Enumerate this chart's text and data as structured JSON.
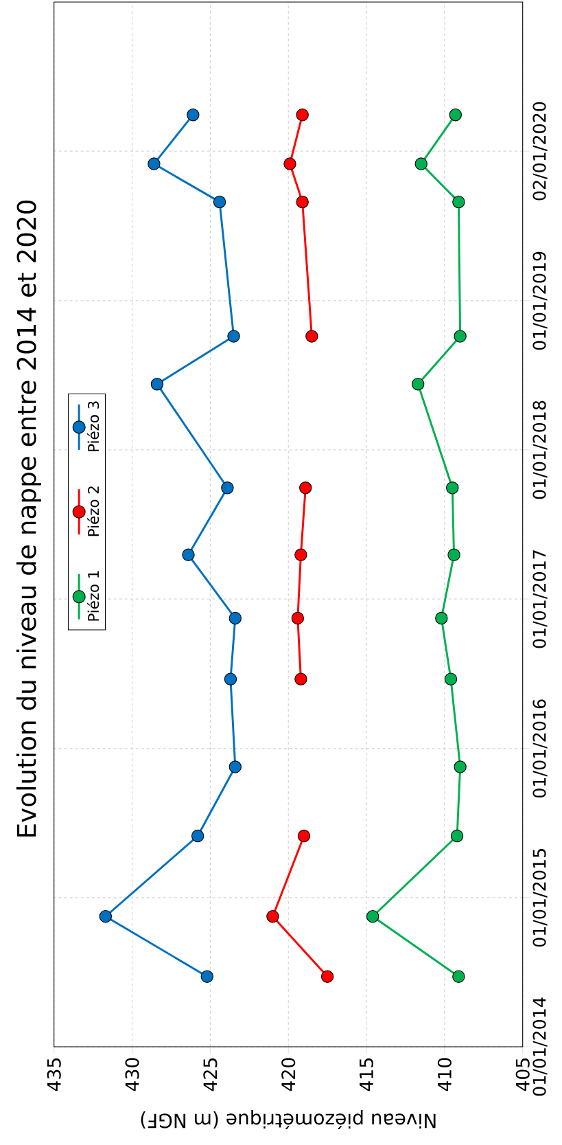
{
  "chart_data": {
    "type": "line",
    "orientation": "horizontal",
    "title": "Evolution du niveau de nappe entre 2014 et 2020",
    "xlabel": "Niveau piézométrique (m NGF)",
    "x": [
      "2014-06-22",
      "2014-11-16",
      "2015-06-01",
      "2015-11-17",
      "2016-06-19",
      "2016-11-15",
      "2017-04-19",
      "2017-09-30",
      "2018-06-11",
      "2018-10-06",
      "2019-08-31",
      "2019-12-02",
      "2020-03-31"
    ],
    "series": [
      {
        "name": "Piézo 1",
        "color": "#00b050",
        "values": [
          409.1,
          414.6,
          409.2,
          409.0,
          409.6,
          410.2,
          409.4,
          409.5,
          411.7,
          409.0,
          409.1,
          411.5,
          409.3
        ]
      },
      {
        "name": "Piézo 2",
        "color": "#ff0000",
        "values": [
          417.5,
          421.0,
          419.0,
          null,
          419.2,
          419.4,
          419.2,
          418.9,
          null,
          418.5,
          419.1,
          419.9,
          419.1
        ]
      },
      {
        "name": "Piézo 3",
        "color": "#0070c0",
        "values": [
          425.2,
          431.7,
          425.8,
          423.4,
          423.7,
          423.4,
          426.4,
          423.9,
          428.4,
          423.5,
          424.4,
          428.6,
          426.1
        ]
      }
    ],
    "ylim": [
      "2014-01-01",
      "2021-01-01"
    ],
    "yticks": [
      {
        "value": "2014-01-01",
        "label": "01/01/2014"
      },
      {
        "value": "2015-01-01",
        "label": "01/01/2015"
      },
      {
        "value": "2016-01-01",
        "label": "01/01/2016"
      },
      {
        "value": "2017-01-01",
        "label": "01/01/2017"
      },
      {
        "value": "2018-01-01",
        "label": "01/01/2018"
      },
      {
        "value": "2019-01-01",
        "label": "01/01/2019"
      },
      {
        "value": "2020-01-02",
        "label": "02/01/2020"
      }
    ],
    "xlim": [
      435,
      405
    ],
    "xticks": [
      435,
      430,
      425,
      420,
      415,
      410,
      405
    ],
    "grid": true,
    "legend": "left",
    "marker": "circle"
  }
}
